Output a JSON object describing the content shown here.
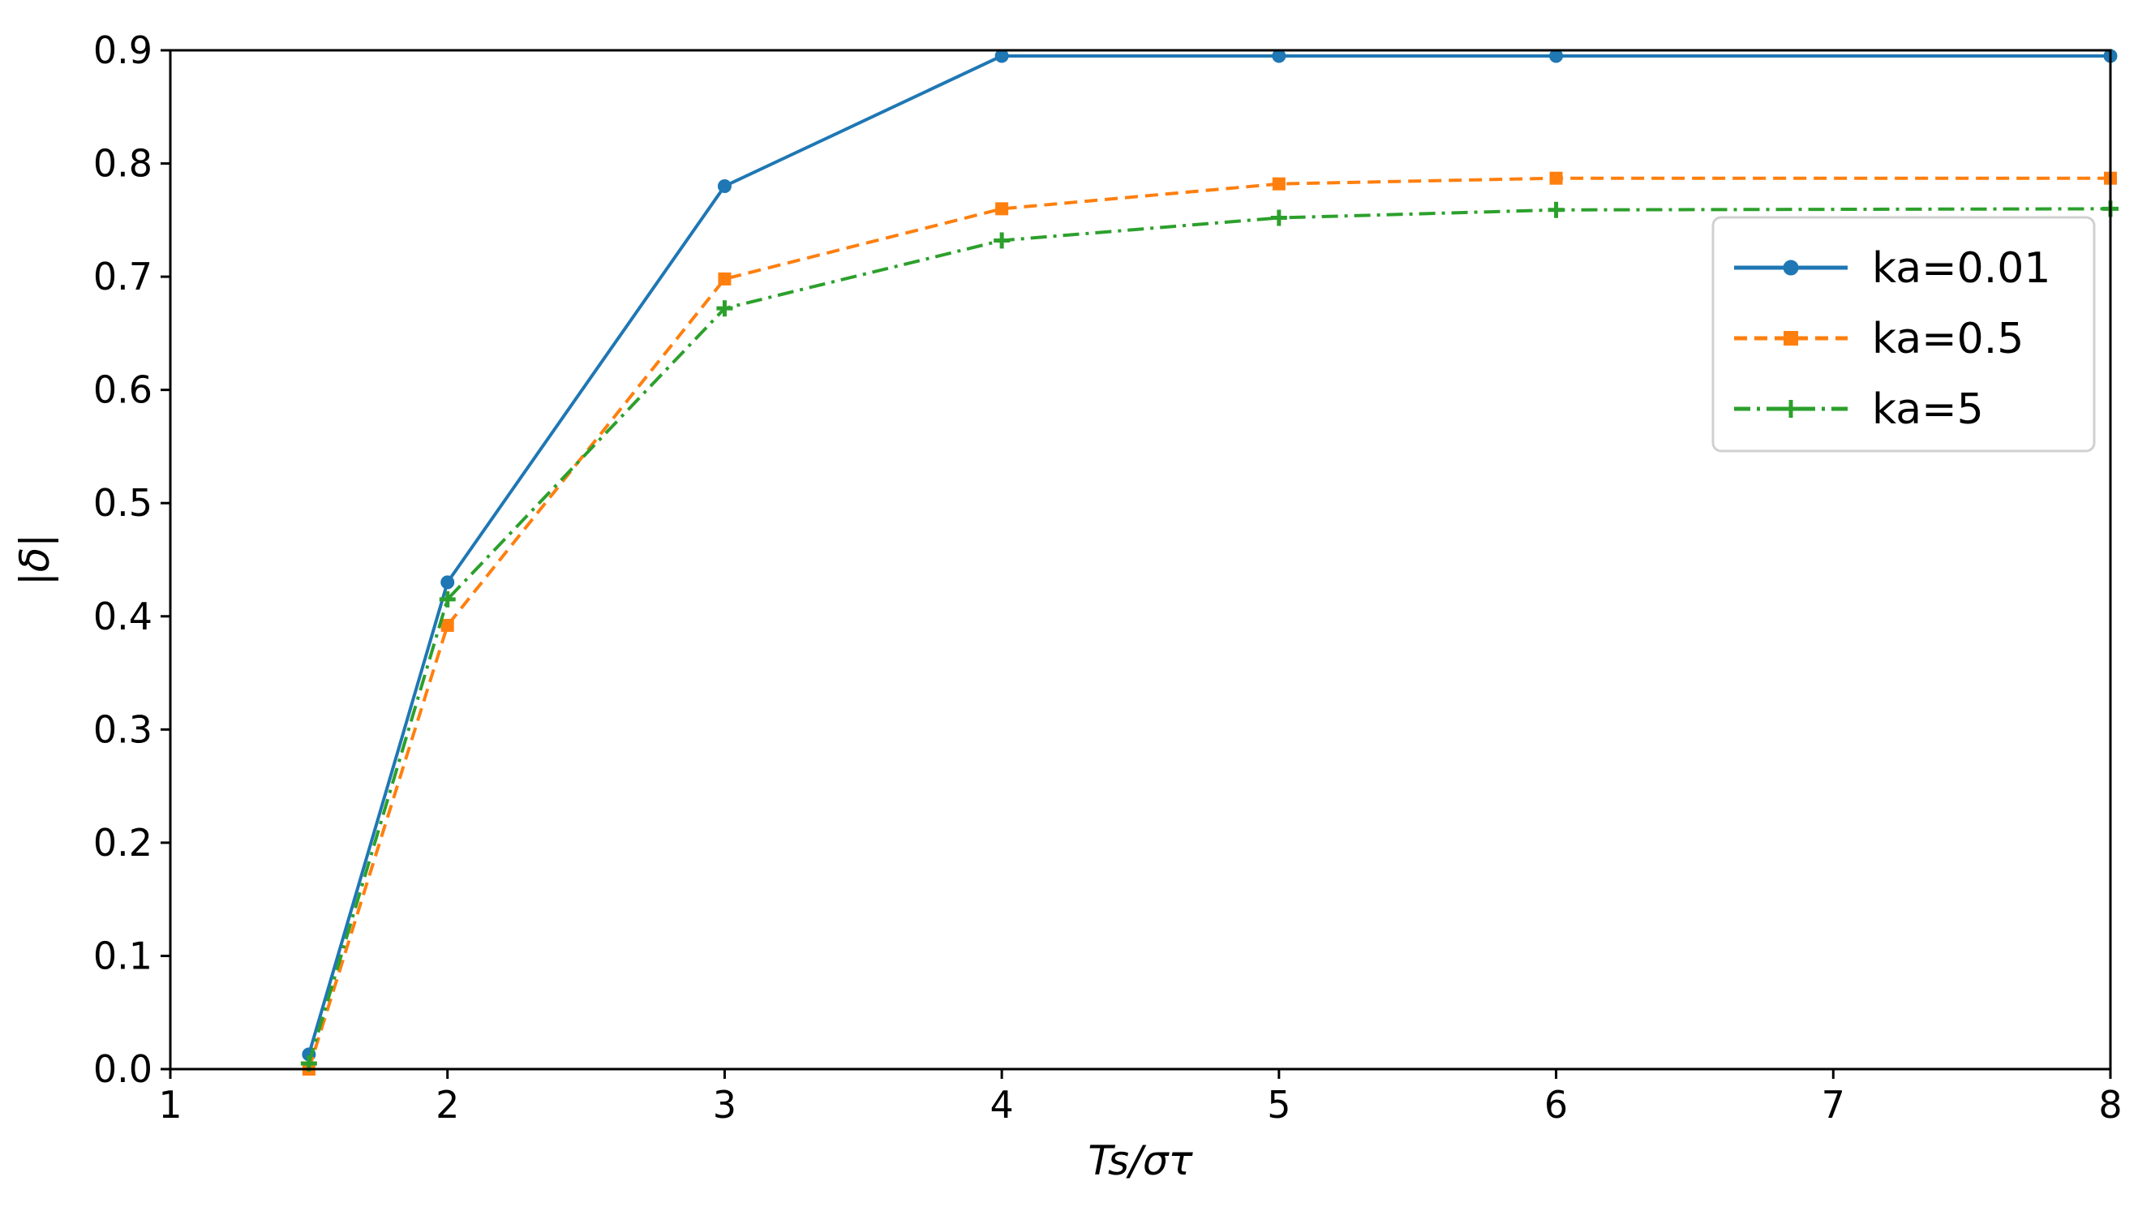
{
  "chart_data": {
    "type": "line",
    "xlabel": "Ts/στ",
    "ylabel": "|δ|",
    "xlim": [
      1,
      8
    ],
    "ylim": [
      0,
      0.9
    ],
    "x_ticks": [
      "1",
      "2",
      "3",
      "4",
      "5",
      "6",
      "7",
      "8"
    ],
    "y_ticks": [
      "0.0",
      "0.1",
      "0.2",
      "0.3",
      "0.4",
      "0.5",
      "0.6",
      "0.7",
      "0.8",
      "0.9"
    ],
    "grid": false,
    "legend_position": "right",
    "series": [
      {
        "name": "ka=0.01",
        "color": "#1f77b4",
        "line_style": "solid",
        "marker": "circle",
        "points": [
          [
            1.5,
            0.013
          ],
          [
            2,
            0.43
          ],
          [
            3,
            0.78
          ],
          [
            4,
            0.895
          ],
          [
            5,
            0.895
          ],
          [
            6,
            0.895
          ],
          [
            8,
            0.895
          ]
        ]
      },
      {
        "name": "ka=0.5",
        "color": "#ff7f0e",
        "line_style": "dashed",
        "marker": "square",
        "points": [
          [
            1.5,
            0.0
          ],
          [
            2,
            0.392
          ],
          [
            3,
            0.698
          ],
          [
            4,
            0.76
          ],
          [
            5,
            0.782
          ],
          [
            6,
            0.787
          ],
          [
            8,
            0.787
          ]
        ]
      },
      {
        "name": "ka=5",
        "color": "#2ca02c",
        "line_style": "dashdot",
        "marker": "plus",
        "points": [
          [
            1.5,
            0.005
          ],
          [
            2,
            0.415
          ],
          [
            3,
            0.672
          ],
          [
            4,
            0.732
          ],
          [
            5,
            0.752
          ],
          [
            6,
            0.759
          ],
          [
            8,
            0.76
          ]
        ]
      }
    ]
  }
}
